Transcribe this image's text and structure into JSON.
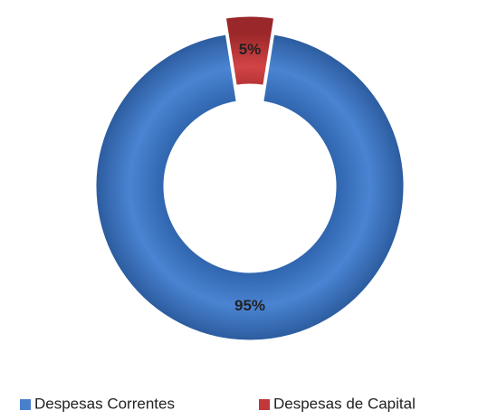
{
  "chart_data": {
    "type": "donut",
    "categories": [
      "Despesas Correntes",
      "Despesas de Capital"
    ],
    "values": [
      95,
      5
    ],
    "value_labels": [
      "95%",
      "5%"
    ],
    "colors": [
      "#4a7fcb",
      "#c0383a"
    ],
    "legend": "bottom"
  }
}
